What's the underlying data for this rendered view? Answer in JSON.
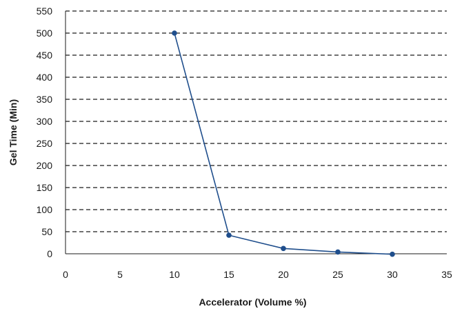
{
  "chart_data": {
    "type": "line",
    "xlabel": "Accelerator (Volume %)",
    "ylabel": "Gel Time (Min)",
    "xlim": [
      0,
      35
    ],
    "ylim": [
      0,
      550
    ],
    "x_ticks": [
      0,
      5,
      10,
      15,
      20,
      25,
      30,
      35
    ],
    "y_ticks": [
      0,
      50,
      100,
      150,
      200,
      250,
      300,
      350,
      400,
      450,
      500,
      550
    ],
    "grid": "horizontal dashed",
    "color": "#1f4e8c",
    "series": [
      {
        "x": [
          10,
          15,
          20,
          25,
          30
        ],
        "y": [
          500,
          42,
          12,
          4,
          -1
        ]
      }
    ]
  }
}
